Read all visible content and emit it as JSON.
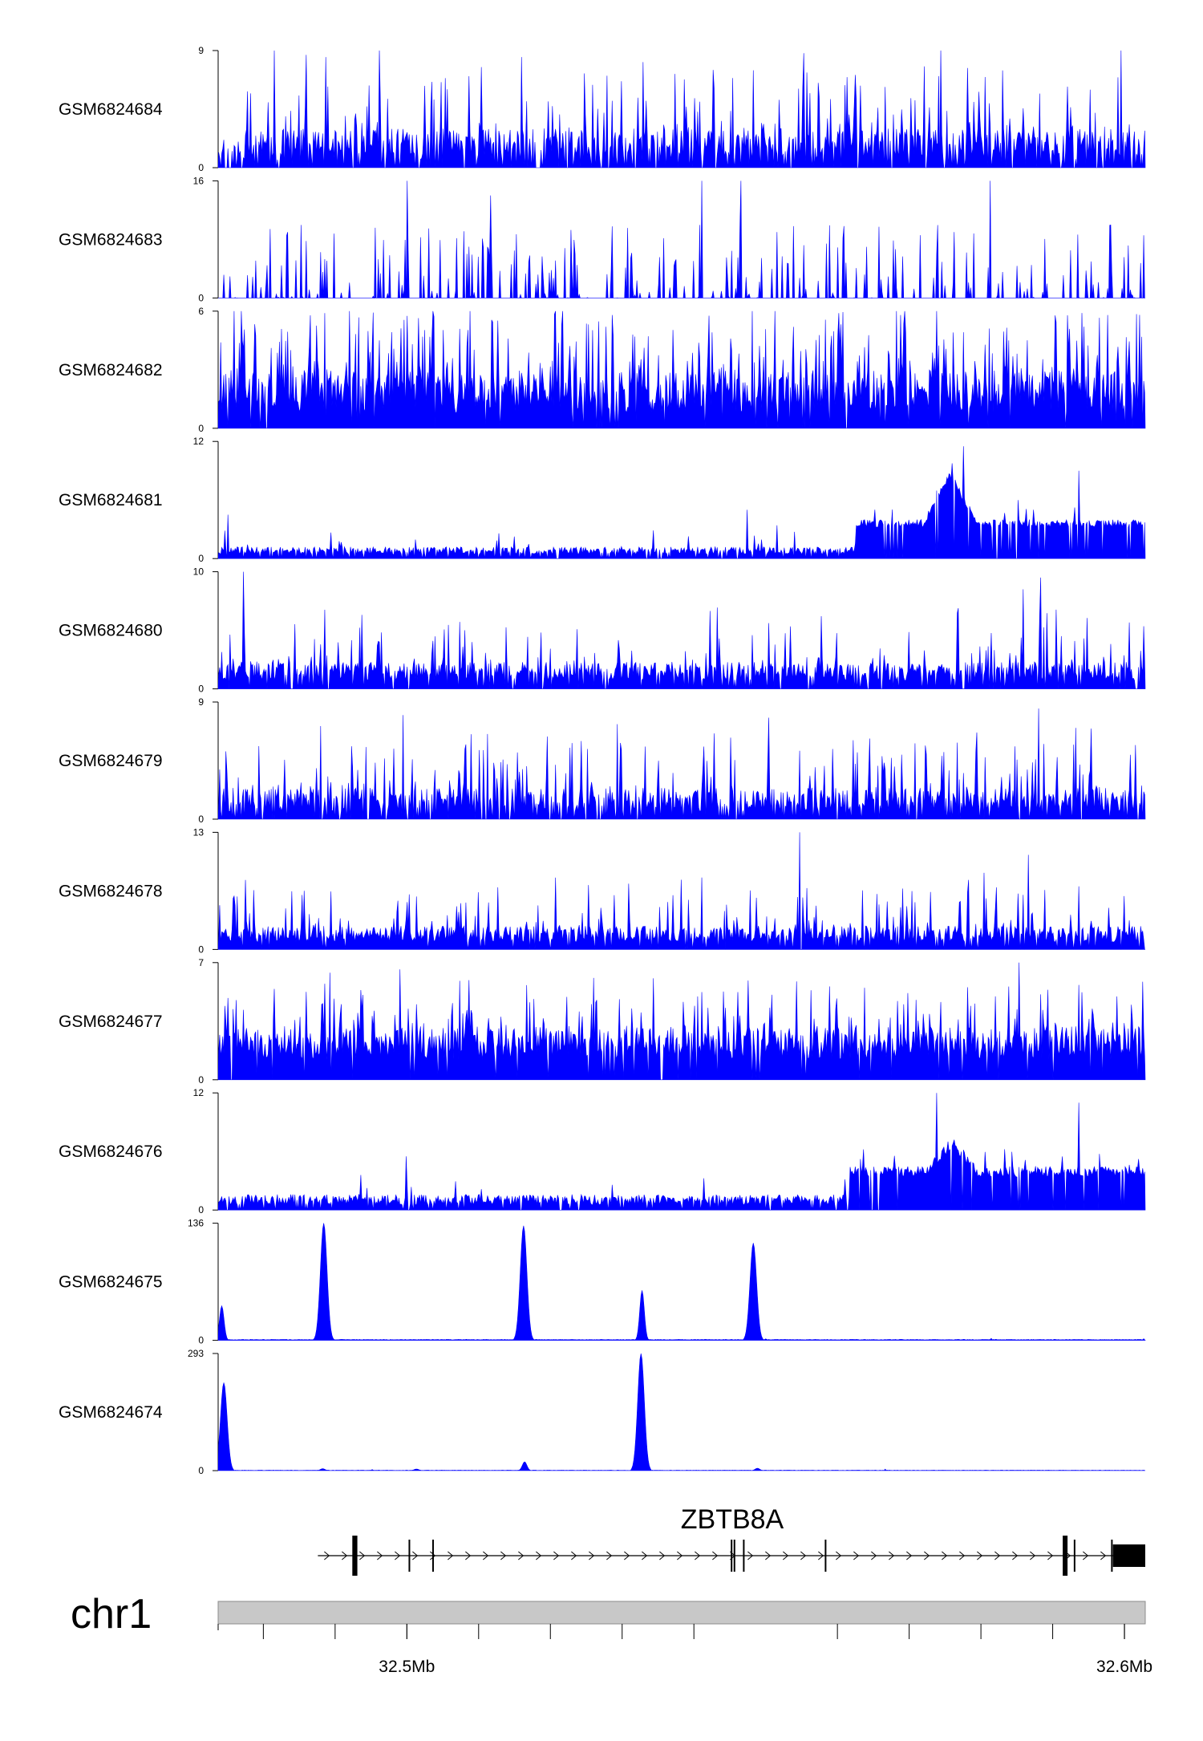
{
  "chart_data": {
    "type": "area",
    "title": "",
    "region": {
      "chromosome": "chr1",
      "start_mb": 32.4737,
      "end_mb": 32.6029
    },
    "colors": {
      "signal": "#0000ff",
      "axis": "#000000",
      "gene": "#000000",
      "ideogram": "#c8c8c8"
    },
    "tracks": [
      {
        "name": "GSM6824684",
        "ymax": "9",
        "ymin": "0",
        "max": 9,
        "pattern": "spiky",
        "seed": 11,
        "base": 0.6,
        "noise": 2.4,
        "spike_prob": 0.25,
        "spike_max": 6.5,
        "gaps": 0.2,
        "peaks": [
          [
            32.4815,
            9
          ],
          [
            32.5159,
            8.5
          ],
          [
            32.5553,
            8.8
          ],
          [
            32.5995,
            9
          ]
        ]
      },
      {
        "name": "GSM6824683",
        "ymax": "16",
        "ymin": "0",
        "max": 16,
        "pattern": "sparse",
        "seed": 23,
        "base": 0,
        "noise": 0,
        "spike_prob": 0.55,
        "spike_max": 10,
        "gaps": 0.55,
        "peaks": [
          [
            32.5,
            16
          ],
          [
            32.5116,
            14
          ],
          [
            32.541,
            16
          ],
          [
            32.5465,
            16
          ],
          [
            32.5812,
            16
          ]
        ]
      },
      {
        "name": "GSM6824682",
        "ymax": "6",
        "ymin": "0",
        "max": 6,
        "pattern": "spiky",
        "seed": 37,
        "base": 0.8,
        "noise": 2.2,
        "spike_prob": 0.35,
        "spike_max": 4.2,
        "gaps": 0.05,
        "peaks": [
          [
            32.5207,
            6
          ],
          [
            32.5286,
            5.8
          ],
          [
            32.5601,
            5.9
          ],
          [
            32.5687,
            5.8
          ]
        ]
      },
      {
        "name": "GSM6824681",
        "ymax": "12",
        "ymin": "0",
        "max": 12,
        "pattern": "step",
        "seed": 41,
        "base": 0.4,
        "noise": 0.8,
        "spike_prob": 0.06,
        "spike_max": 2.5,
        "gaps": 0.1,
        "peaks": [
          [
            32.475,
            4.5
          ],
          [
            32.5474,
            5
          ],
          [
            32.5775,
            11.5
          ],
          [
            32.5935,
            9
          ]
        ],
        "step_at": 32.5626,
        "step_level": 3.2,
        "hump": [
          32.572,
          32.5795,
          5
        ]
      },
      {
        "name": "GSM6824680",
        "ymax": "10",
        "ymin": "0",
        "max": 10,
        "pattern": "spiky",
        "seed": 53,
        "base": 0.7,
        "noise": 1.6,
        "spike_prob": 0.18,
        "spike_max": 5,
        "gaps": 0.12,
        "peaks": [
          [
            32.4771,
            10
          ],
          [
            32.5858,
            8.5
          ],
          [
            32.5883,
            9.5
          ]
        ]
      },
      {
        "name": "GSM6824679",
        "ymax": "9",
        "ymin": "0",
        "max": 9,
        "pattern": "spiky",
        "seed": 67,
        "base": 0.6,
        "noise": 1.8,
        "spike_prob": 0.22,
        "spike_max": 5,
        "gaps": 0.15,
        "peaks": [
          [
            32.4994,
            8
          ],
          [
            32.5293,
            7.3
          ],
          [
            32.5503,
            7.8
          ],
          [
            32.5879,
            8.5
          ]
        ]
      },
      {
        "name": "GSM6824678",
        "ymax": "13",
        "ymin": "0",
        "max": 13,
        "pattern": "spiky",
        "seed": 79,
        "base": 0.8,
        "noise": 1.8,
        "spike_prob": 0.18,
        "spike_max": 5.5,
        "gaps": 0.08,
        "peaks": [
          [
            32.5546,
            13
          ],
          [
            32.5865,
            10.5
          ],
          [
            32.5804,
            8.5
          ]
        ]
      },
      {
        "name": "GSM6824677",
        "ymax": "7",
        "ymin": "0",
        "max": 7,
        "pattern": "spiky",
        "seed": 83,
        "base": 1.2,
        "noise": 2,
        "spike_prob": 0.25,
        "spike_max": 3.5,
        "gaps": 0.05,
        "peaks": [
          [
            32.5852,
            7
          ],
          [
            32.5637,
            5.5
          ],
          [
            32.4881,
            4.5
          ]
        ]
      },
      {
        "name": "GSM6824676",
        "ymax": "12",
        "ymin": "0",
        "max": 12,
        "pattern": "step",
        "seed": 97,
        "base": 0.5,
        "noise": 1.1,
        "spike_prob": 0.06,
        "spike_max": 2.5,
        "gaps": 0.08,
        "peaks": [
          [
            32.4998,
            5.5
          ],
          [
            32.5738,
            12
          ],
          [
            32.5935,
            11
          ]
        ],
        "step_at": 32.5617,
        "step_level": 3.4,
        "hump": [
          32.5725,
          32.5795,
          3
        ]
      },
      {
        "name": "GSM6824675",
        "ymax": "136",
        "ymin": "0",
        "max": 136,
        "pattern": "peaks",
        "seed": 101,
        "base": 0.5,
        "noise": 0.6,
        "spike_prob": 0.01,
        "spike_max": 2,
        "gaps": 0,
        "peaks": [
          [
            32.4741,
            40
          ],
          [
            32.4883,
            136
          ],
          [
            32.5162,
            133
          ],
          [
            32.5327,
            58
          ],
          [
            32.5482,
            113
          ]
        ]
      },
      {
        "name": "GSM6824674",
        "ymax": "293",
        "ymin": "0",
        "max": 293,
        "pattern": "peaks",
        "seed": 113,
        "base": 0.4,
        "noise": 0.8,
        "spike_prob": 0.01,
        "spike_max": 3,
        "gaps": 0,
        "peaks": [
          [
            32.4744,
            220
          ],
          [
            32.4882,
            5
          ],
          [
            32.5012,
            4
          ],
          [
            32.5163,
            22
          ],
          [
            32.5326,
            293
          ],
          [
            32.5488,
            6
          ]
        ]
      }
    ],
    "gene": {
      "name": "ZBTB8A",
      "strand": "+",
      "start_mb": 32.4876,
      "end_mb": 32.6029,
      "exons": [
        {
          "start_mb": 32.4924,
          "end_mb": 32.4931,
          "kind": "coding"
        },
        {
          "start_mb": 32.5003,
          "end_mb": 32.5004,
          "kind": "thin"
        },
        {
          "start_mb": 32.5036,
          "end_mb": 32.5037,
          "kind": "thin"
        },
        {
          "start_mb": 32.5452,
          "end_mb": 32.5453,
          "kind": "thin"
        },
        {
          "start_mb": 32.5456,
          "end_mb": 32.5457,
          "kind": "thin"
        },
        {
          "start_mb": 32.5469,
          "end_mb": 32.547,
          "kind": "thin"
        },
        {
          "start_mb": 32.5583,
          "end_mb": 32.5584,
          "kind": "thin"
        },
        {
          "start_mb": 32.5914,
          "end_mb": 32.592,
          "kind": "coding"
        },
        {
          "start_mb": 32.593,
          "end_mb": 32.5931,
          "kind": "thin"
        },
        {
          "start_mb": 32.5982,
          "end_mb": 32.5983,
          "kind": "thin"
        },
        {
          "start_mb": 32.5984,
          "end_mb": 32.6029,
          "kind": "utr"
        }
      ]
    },
    "ideogram": {
      "label": "chr1"
    },
    "x_axis": {
      "minor_ticks_mb": [
        32.48,
        32.49,
        32.51,
        32.52,
        32.53,
        32.54,
        32.56,
        32.57,
        32.58,
        32.59
      ],
      "major_ticks": [
        {
          "mb": 32.5,
          "label": "32.5Mb"
        },
        {
          "mb": 32.6,
          "label": "32.6Mb"
        }
      ]
    }
  }
}
